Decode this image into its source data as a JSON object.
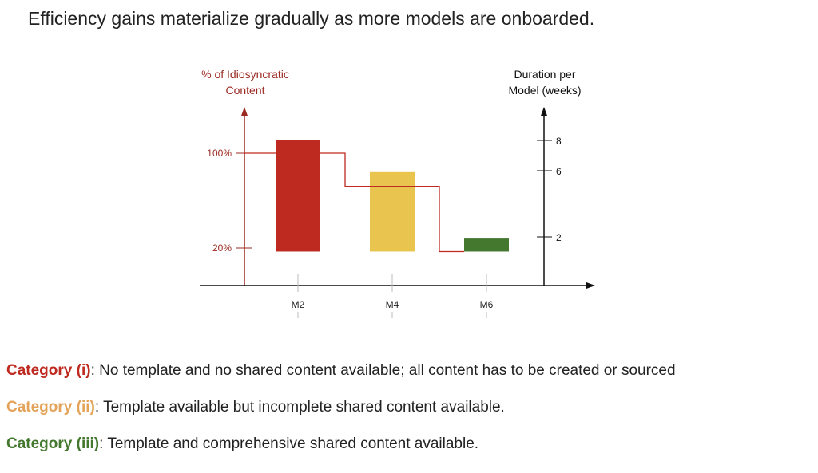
{
  "headline": "Efficiency gains materialize gradually as more models are onboarded.",
  "colors": {
    "red": "#BE2A1F",
    "yellow": "#E9C44F",
    "green": "#43782E",
    "axis_left": "#9B2A22",
    "axis_right": "#111111",
    "cat_i": "#BE2A1F",
    "cat_ii": "#E3A45A",
    "cat_iii": "#43782E"
  },
  "chart_data": {
    "type": "bar",
    "categories": [
      "M2",
      "M4",
      "M6"
    ],
    "left_axis": {
      "label_line1": "% of Idiosyncratic",
      "label_line2": "Content",
      "ticks": [
        {
          "value": 100,
          "label": "100%"
        },
        {
          "value": 20,
          "label": "20%"
        }
      ]
    },
    "right_axis": {
      "label_line1": "Duration per",
      "label_line2": "Model (weeks)",
      "ticks": [
        {
          "value": 8,
          "label": "8"
        },
        {
          "value": 6,
          "label": "6"
        },
        {
          "value": 2,
          "label": "2"
        }
      ]
    },
    "bars": [
      {
        "category": "M2",
        "color": "red",
        "top_pct": 111,
        "base_pct": 17
      },
      {
        "category": "M4",
        "color": "yellow",
        "top_pct": 84,
        "base_pct": 17
      },
      {
        "category": "M6",
        "color": "green",
        "top_pct": 28,
        "base_pct": 17
      }
    ],
    "step_line_levels_pct": [
      100,
      72,
      17
    ]
  },
  "legend": [
    {
      "category": "Category (i)",
      "text": ": No template and no shared content available; all content has to be created or sourced",
      "color_key": "cat_i"
    },
    {
      "category": "Category (ii)",
      "text": ": Template available but incomplete shared content available.",
      "color_key": "cat_ii"
    },
    {
      "category": "Category (iii)",
      "text": ": Template and comprehensive shared content available.",
      "color_key": "cat_iii"
    }
  ]
}
